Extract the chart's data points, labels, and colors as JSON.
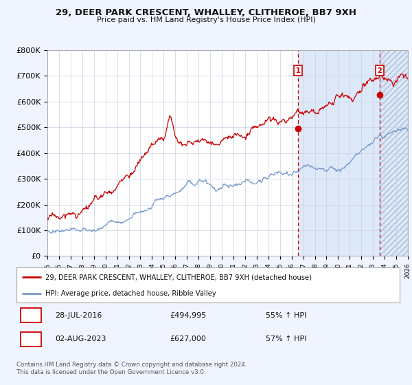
{
  "title": "29, DEER PARK CRESCENT, WHALLEY, CLITHEROE, BB7 9XH",
  "subtitle": "Price paid vs. HM Land Registry's House Price Index (HPI)",
  "ylim": [
    0,
    800000
  ],
  "yticks": [
    0,
    100000,
    200000,
    300000,
    400000,
    500000,
    600000,
    700000,
    800000
  ],
  "ytick_labels": [
    "£0",
    "£100K",
    "£200K",
    "£300K",
    "£400K",
    "£500K",
    "£600K",
    "£700K",
    "£800K"
  ],
  "x_start_year": 1995,
  "x_end_year": 2026,
  "red_line_color": "#cc0000",
  "blue_line_color": "#7799cc",
  "shade_color": "#dde8f8",
  "vline_color": "#cc0000",
  "marker1_year": 2016.57,
  "marker1_value": 494995,
  "marker2_year": 2023.58,
  "marker2_value": 627000,
  "legend_red_label": "29, DEER PARK CRESCENT, WHALLEY, CLITHEROE, BB7 9XH (detached house)",
  "legend_blue_label": "HPI: Average price, detached house, Ribble Valley",
  "table_row1": [
    "1",
    "28-JUL-2016",
    "£494,995",
    "55% ↑ HPI"
  ],
  "table_row2": [
    "2",
    "02-AUG-2023",
    "£627,000",
    "57% ↑ HPI"
  ],
  "footer": "Contains HM Land Registry data © Crown copyright and database right 2024.\nThis data is licensed under the Open Government Licence v3.0.",
  "bg_color": "#f0f4ff",
  "plot_bg_color": "#ffffff",
  "grid_color": "#c8d0e0"
}
